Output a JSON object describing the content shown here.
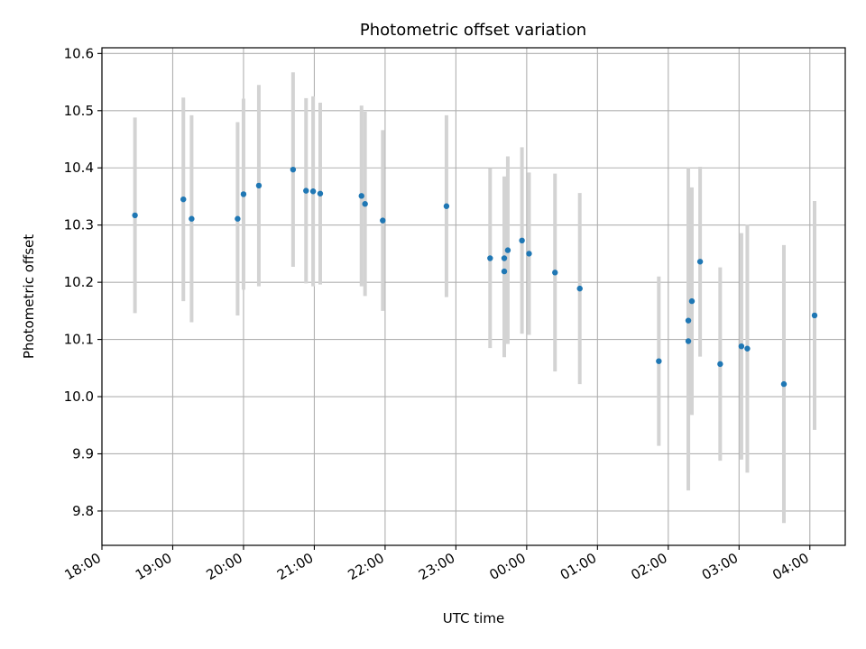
{
  "chart_data": {
    "type": "scatter",
    "title": "Photometric offset variation",
    "xlabel": "UTC time",
    "ylabel": "Photometric offset",
    "x_unit": "hours after 18:00 UTC",
    "xlim": [
      18.0,
      28.5
    ],
    "ylim": [
      9.74,
      10.61
    ],
    "grid": true,
    "x_tick_labels": [
      "18:00",
      "19:00",
      "20:00",
      "21:00",
      "22:00",
      "23:00",
      "00:00",
      "01:00",
      "02:00",
      "03:00",
      "04:00"
    ],
    "y_tick_labels": [
      "9.8",
      "9.9",
      "10.0",
      "10.1",
      "10.2",
      "10.3",
      "10.4",
      "10.5",
      "10.6"
    ],
    "colors": {
      "points": "#1f77b4",
      "errorbars": "#d3d3d3",
      "grid": "#b0b0b0"
    },
    "points": [
      {
        "x": "18:28",
        "y": 10.317,
        "err": 0.171
      },
      {
        "x": "19:09",
        "y": 10.345,
        "err": 0.178
      },
      {
        "x": "19:16",
        "y": 10.311,
        "err": 0.181
      },
      {
        "x": "19:55",
        "y": 10.311,
        "err": 0.169
      },
      {
        "x": "20:00",
        "y": 10.354,
        "err": 0.167
      },
      {
        "x": "20:13",
        "y": 10.369,
        "err": 0.176
      },
      {
        "x": "20:42",
        "y": 10.397,
        "err": 0.17
      },
      {
        "x": "20:53",
        "y": 10.36,
        "err": 0.162
      },
      {
        "x": "20:59",
        "y": 10.359,
        "err": 0.166
      },
      {
        "x": "21:05",
        "y": 10.355,
        "err": 0.159
      },
      {
        "x": "21:40",
        "y": 10.351,
        "err": 0.158
      },
      {
        "x": "21:43",
        "y": 10.337,
        "err": 0.161
      },
      {
        "x": "21:58",
        "y": 10.308,
        "err": 0.158
      },
      {
        "x": "22:52",
        "y": 10.333,
        "err": 0.159
      },
      {
        "x": "23:29",
        "y": 10.242,
        "err": 0.157
      },
      {
        "x": "23:41",
        "y": 10.219,
        "err": 0.15
      },
      {
        "x": "23:41",
        "y": 10.242,
        "err": 0.143
      },
      {
        "x": "23:44",
        "y": 10.256,
        "err": 0.164
      },
      {
        "x": "23:56",
        "y": 10.273,
        "err": 0.163
      },
      {
        "x": "00:02",
        "y": 10.25,
        "err": 0.142
      },
      {
        "x": "00:24",
        "y": 10.217,
        "err": 0.173
      },
      {
        "x": "00:45",
        "y": 10.189,
        "err": 0.167
      },
      {
        "x": "01:52",
        "y": 10.062,
        "err": 0.148
      },
      {
        "x": "02:17",
        "y": 10.133,
        "err": 0.268
      },
      {
        "x": "02:17",
        "y": 10.097,
        "err": 0.261
      },
      {
        "x": "02:20",
        "y": 10.167,
        "err": 0.199
      },
      {
        "x": "02:27",
        "y": 10.236,
        "err": 0.166
      },
      {
        "x": "02:44",
        "y": 10.057,
        "err": 0.169
      },
      {
        "x": "03:02",
        "y": 10.088,
        "err": 0.198
      },
      {
        "x": "03:07",
        "y": 10.084,
        "err": 0.217
      },
      {
        "x": "03:38",
        "y": 10.022,
        "err": 0.243
      },
      {
        "x": "04:04",
        "y": 10.142,
        "err": 0.2
      }
    ]
  }
}
